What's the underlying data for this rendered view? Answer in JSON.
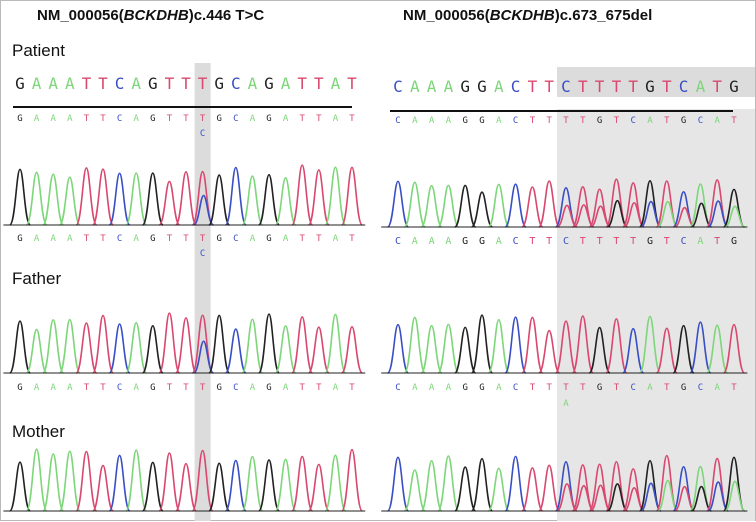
{
  "left_panel": {
    "title_prefix": "NM_000056(",
    "title_gene": "BCKDHB",
    "title_suffix": ")c.446 T>C",
    "reference": "GAAATTCAGTTTGCAGATTAT",
    "highlight_index": 11,
    "variant_base": "C"
  },
  "right_panel": {
    "title_prefix": "NM_000056(",
    "title_gene": "BCKDHB",
    "title_suffix": ")c.673_675del",
    "reference": "CAAAGGACTTCTTTTGTCATG",
    "highlight_start": 10,
    "called_patient": "CAAAGGACTTTTGTCATGCAT",
    "called_father": "CAAAGGACTTTTGTCATGCAT",
    "father_extra_base": "A"
  },
  "rows": {
    "patient": {
      "label": "Patient",
      "left_called": "GAAATTCAGTTTGCAGATTAT",
      "left_called_bottom": "GAAATTCAGTTTGCAGATTAT"
    },
    "father": {
      "label": "Father",
      "left_called": "GAAATTCAGTTTGCAGATTAT"
    },
    "mother": {
      "label": "Mother"
    }
  },
  "base_colors": {
    "A": "#7ed67a",
    "C": "#3a4fc4",
    "G": "#222222",
    "T": "#d9486f"
  }
}
